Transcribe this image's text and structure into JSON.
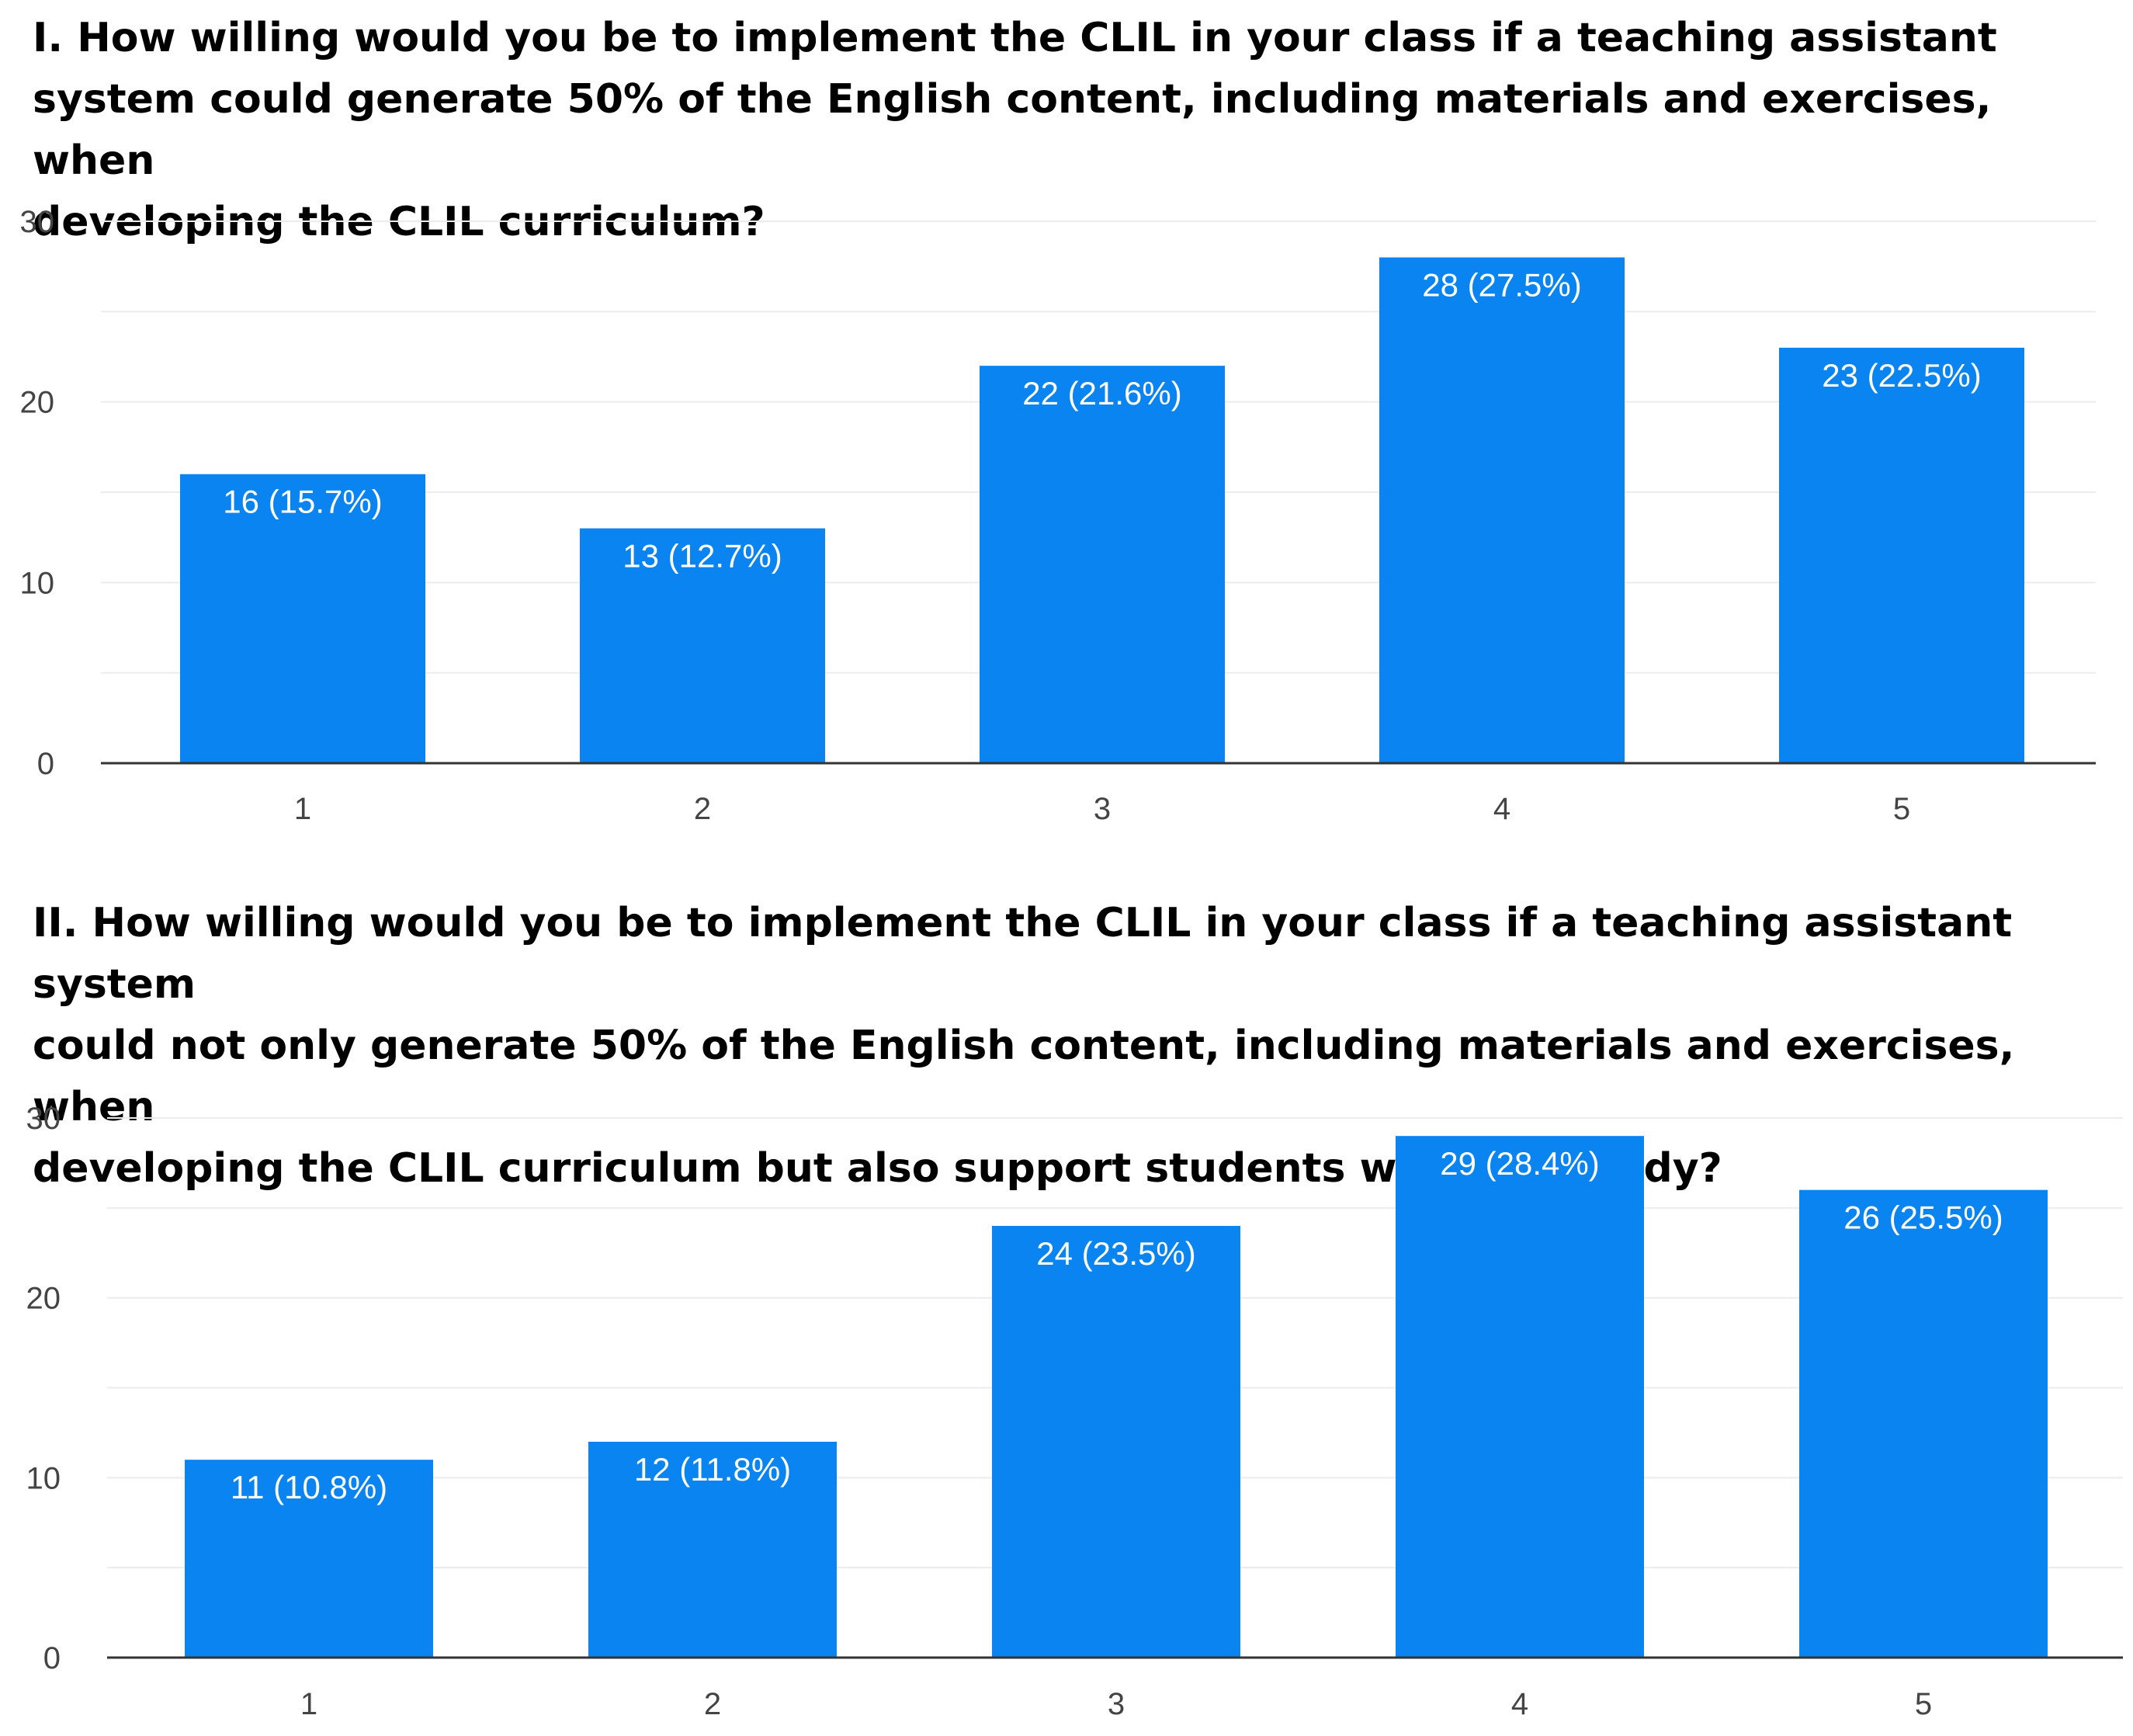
{
  "colors": {
    "bar": "#0a84f0",
    "grid": "#ececec",
    "axis": "#333333",
    "bar_label": "#ffffff",
    "tick_label": "#444444"
  },
  "chart_data": [
    {
      "type": "bar",
      "title": "I. How willing would you be to implement the CLIL in your class if a teaching assistant\nsystem could generate 50% of the English content, including materials and exercises, when\ndeveloping the CLIL curriculum?",
      "categories": [
        "1",
        "2",
        "3",
        "4",
        "5"
      ],
      "values": [
        16,
        13,
        22,
        28,
        23
      ],
      "data_labels": [
        "16 (15.7%)",
        "13 (12.7%)",
        "22 (21.6%)",
        "28 (27.5%)",
        "23 (22.5%)"
      ],
      "ylim": [
        0,
        30
      ],
      "yticks": [
        0,
        10,
        20,
        30
      ],
      "grid": true,
      "legend": "none"
    },
    {
      "type": "bar",
      "title": "II. How willing would you be to implement the CLIL in your class if a teaching assistant system\ncould not only generate 50% of the English content, including materials and exercises, when\ndeveloping the CLIL curriculum but also support students with self-study?",
      "categories": [
        "1",
        "2",
        "3",
        "4",
        "5"
      ],
      "values": [
        11,
        12,
        24,
        29,
        26
      ],
      "data_labels": [
        "11 (10.8%)",
        "12 (11.8%)",
        "24 (23.5%)",
        "29 (28.4%)",
        "26 (25.5%)"
      ],
      "ylim": [
        0,
        30
      ],
      "yticks": [
        0,
        10,
        20,
        30
      ],
      "grid": true,
      "legend": "none"
    }
  ]
}
